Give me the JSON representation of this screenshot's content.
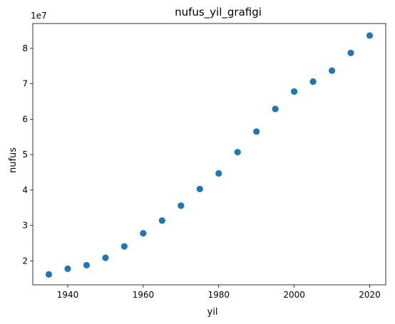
{
  "chart_data": {
    "type": "scatter",
    "title": "nufus_yil_grafigi",
    "xlabel": "yil",
    "ylabel": "nufus",
    "y_offset_label": "1e7",
    "y_scale_factor": 10000000,
    "xlim": [
      1930.75,
      2024.25
    ],
    "ylim": [
      13260000,
      87000000
    ],
    "x_ticks": [
      1940,
      1960,
      1980,
      2000,
      2020
    ],
    "y_ticks": [
      2,
      3,
      4,
      5,
      6,
      7,
      8
    ],
    "grid": false,
    "legend": "none",
    "marker_color": "#1f77b4",
    "series": [
      {
        "x": [
          1935,
          1940,
          1945,
          1950,
          1955,
          1960,
          1965,
          1970,
          1975,
          1980,
          1985,
          1990,
          1995,
          2000,
          2005,
          2010,
          2015,
          2020
        ],
        "y": [
          16200000,
          17800000,
          18800000,
          20900000,
          24100000,
          27800000,
          31400000,
          35600000,
          40300000,
          44700000,
          50700000,
          56500000,
          62900000,
          67800000,
          70600000,
          73700000,
          78700000,
          83600000
        ]
      }
    ]
  }
}
